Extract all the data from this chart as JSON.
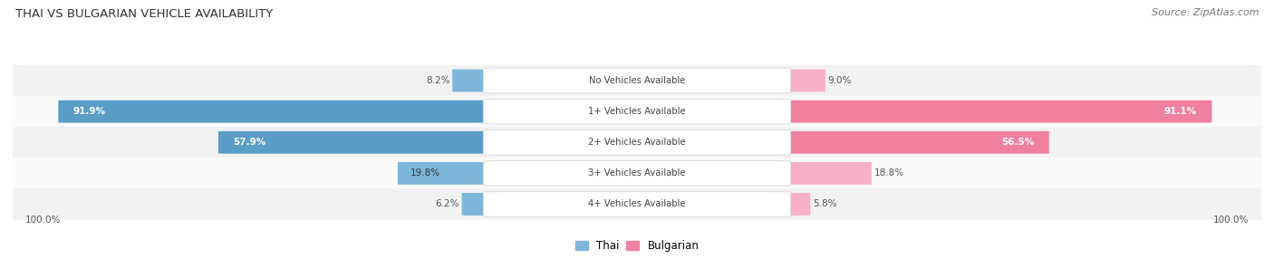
{
  "title": "THAI VS BULGARIAN VEHICLE AVAILABILITY",
  "source": "Source: ZipAtlas.com",
  "categories": [
    "No Vehicles Available",
    "1+ Vehicles Available",
    "2+ Vehicles Available",
    "3+ Vehicles Available",
    "4+ Vehicles Available"
  ],
  "thai_values": [
    8.2,
    91.9,
    57.9,
    19.8,
    6.2
  ],
  "bulgarian_values": [
    9.0,
    91.1,
    56.5,
    18.8,
    5.8
  ],
  "thai_color": "#7EB6D9",
  "thai_color_dark": "#5A9EC8",
  "bulgarian_color": "#F080A0",
  "bulgarian_color_light": "#F8B0C8",
  "row_bg": "#F2F2F2",
  "row_bg2": "#FAFAFA",
  "title_color": "#333333",
  "label_color": "#555555",
  "max_value": 100.0,
  "figsize": [
    14.06,
    2.86
  ],
  "dpi": 100
}
